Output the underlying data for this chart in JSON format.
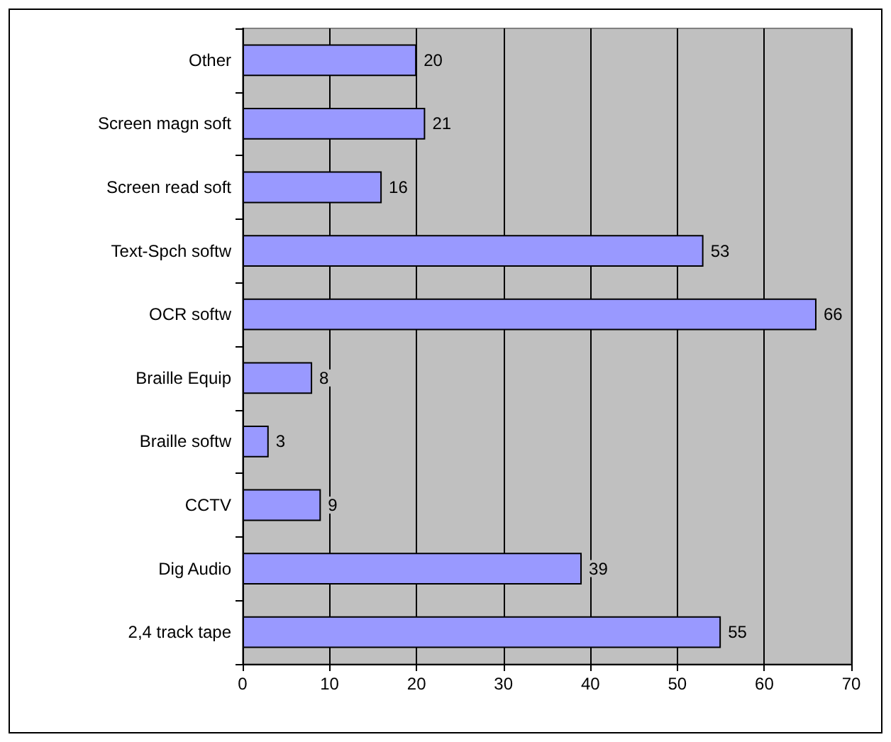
{
  "chart_data": {
    "type": "bar",
    "orientation": "horizontal",
    "categories": [
      "Other",
      "Screen magn soft",
      "Screen read soft",
      "Text-Spch softw",
      "OCR softw",
      "Braille Equip",
      "Braille softw",
      "CCTV",
      "Dig Audio",
      "2,4 track tape"
    ],
    "values": [
      20,
      21,
      16,
      53,
      66,
      8,
      3,
      9,
      39,
      55
    ],
    "color": "#9999ff",
    "xlim": [
      0,
      70
    ],
    "xticks": [
      0,
      10,
      20,
      30,
      40,
      50,
      60,
      70
    ],
    "grid": "x",
    "data_labels": true
  }
}
